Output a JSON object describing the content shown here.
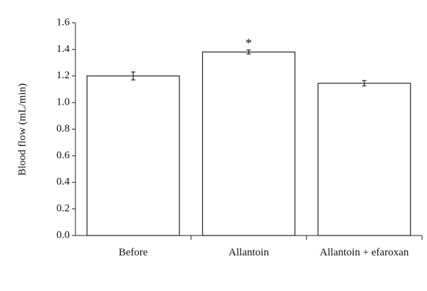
{
  "chart_data": {
    "type": "bar",
    "y_label": "Blood flow (mL/min)",
    "categories": [
      "Before",
      "Allantoin",
      "Allantoin + efaroxan"
    ],
    "values": [
      1.2,
      1.38,
      1.145
    ],
    "errors": [
      0.03,
      0.015,
      0.02
    ],
    "annotation": "*",
    "color": "#ffffff",
    "ylim": [
      0,
      1.6
    ],
    "yticks": [
      {
        "value": 0,
        "label": "0.0"
      },
      0.2,
      0.4,
      0.6,
      0.8,
      {
        "value": 1,
        "label": "1.0"
      },
      1.2,
      1.4,
      1.6
    ],
    "grid": false
  }
}
